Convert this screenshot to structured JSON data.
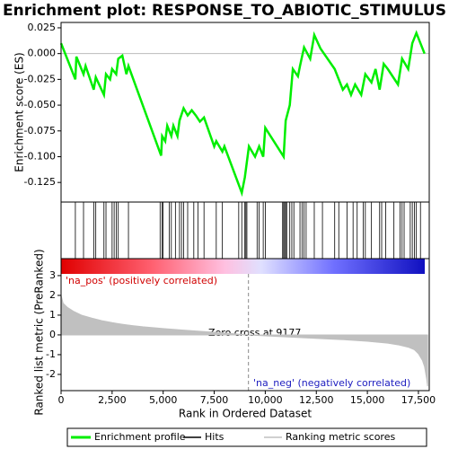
{
  "chart_data": [
    {
      "type": "line",
      "title": "Enrichment plot: RESPONSE_TO_ABIOTIC_STIMULUS",
      "ylabel": "Enrichment score (ES)",
      "xlim": [
        0,
        18030
      ],
      "ylim": [
        -0.144,
        0.0302
      ],
      "yticks": [
        0.025,
        {
          "value": 0,
          "label": "0.000"
        },
        -0.025,
        {
          "value": -0.05,
          "label": "-0.050"
        },
        -0.075,
        {
          "value": -0.1,
          "label": "-0.100"
        },
        -0.125
      ],
      "x": [
        0,
        700,
        750,
        1100,
        1200,
        1600,
        1700,
        2100,
        2200,
        2400,
        2500,
        2700,
        2800,
        3000,
        3200,
        3300,
        4900,
        4950,
        5100,
        5200,
        5400,
        5500,
        5700,
        5800,
        6000,
        6200,
        6400,
        6600,
        6800,
        7000,
        7500,
        7600,
        7900,
        8000,
        8850,
        9000,
        9100,
        9200,
        9500,
        9700,
        9900,
        10000,
        10900,
        11000,
        11200,
        11350,
        11600,
        11700,
        11900,
        12200,
        12400,
        12700,
        13400,
        13800,
        14000,
        14200,
        14400,
        14700,
        14900,
        15200,
        15400,
        15600,
        15800,
        16000,
        16500,
        16700,
        17000,
        17200,
        17400,
        17700,
        17800
      ],
      "series": [
        {
          "name": "Enrichment profile",
          "color": "#00ee00",
          "values": [
            0.01,
            -0.025,
            -0.003,
            -0.02,
            -0.012,
            -0.035,
            -0.023,
            -0.04,
            -0.02,
            -0.025,
            -0.015,
            -0.02,
            -0.005,
            -0.002,
            -0.02,
            -0.012,
            -0.099,
            -0.08,
            -0.085,
            -0.07,
            -0.08,
            -0.07,
            -0.08,
            -0.065,
            -0.053,
            -0.06,
            -0.055,
            -0.06,
            -0.066,
            -0.062,
            -0.09,
            -0.085,
            -0.095,
            -0.09,
            -0.135,
            -0.12,
            -0.105,
            -0.09,
            -0.1,
            -0.09,
            -0.1,
            -0.072,
            -0.1,
            -0.065,
            -0.05,
            -0.015,
            -0.022,
            -0.012,
            0.006,
            -0.005,
            0.018,
            0.005,
            -0.015,
            -0.035,
            -0.03,
            -0.04,
            -0.03,
            -0.04,
            -0.02,
            -0.028,
            -0.015,
            -0.035,
            -0.01,
            -0.015,
            -0.03,
            -0.005,
            -0.015,
            0.01,
            0.02,
            0.005,
            0
          ]
        }
      ]
    },
    {
      "type": "rug",
      "xlim": [
        0,
        18030
      ],
      "series": [
        {
          "name": "Hits",
          "color": "#000000",
          "x": [
            700,
            1100,
            1600,
            1700,
            2100,
            2200,
            2500,
            2600,
            2700,
            2800,
            3300,
            4850,
            4950,
            5000,
            5300,
            5400,
            5600,
            5800,
            5900,
            6000,
            6200,
            6500,
            6700,
            7000,
            7600,
            7900,
            8700,
            8850,
            9000,
            9050,
            9100,
            9600,
            9700,
            9900,
            10000,
            10850,
            10900,
            10950,
            11000,
            11050,
            11200,
            11300,
            11400,
            11700,
            11800,
            11900,
            12000,
            12400,
            12800,
            13400,
            13600,
            14000,
            14300,
            14500,
            14800,
            14900,
            15200,
            15600,
            15700,
            15900,
            16300,
            16600,
            16700,
            16800,
            17100,
            17200,
            17300,
            17400,
            17600
          ]
        }
      ]
    },
    {
      "type": "area",
      "ylabel": "Ranked list metric (PreRanked)",
      "xlabel": "Rank in Ordered Dataset",
      "xlim": [
        0,
        18030
      ],
      "ylim": [
        -2.82,
        3.86
      ],
      "yticks": [
        3,
        2,
        1,
        0,
        -1,
        -2
      ],
      "xticks": [
        0,
        {
          "value": 2500,
          "label": "2,500"
        },
        {
          "value": 5000,
          "label": "5,000"
        },
        {
          "value": 7500,
          "label": "7,500"
        },
        {
          "value": 10000,
          "label": "10,000"
        },
        {
          "value": 12500,
          "label": "12,500"
        },
        {
          "value": 15000,
          "label": "15,000"
        },
        {
          "value": 17500,
          "label": "17,500"
        }
      ],
      "x": [
        0,
        100,
        300,
        600,
        1000,
        1500,
        2000,
        2500,
        3000,
        3500,
        4000,
        5000,
        6000,
        7000,
        8000,
        9177,
        10000,
        11000,
        12000,
        13000,
        14000,
        15000,
        16000,
        16500,
        17000,
        17300,
        17500,
        17700,
        17800,
        17900,
        17950
      ],
      "series": [
        {
          "name": "Ranking metric scores",
          "color": "#c0c0c0",
          "values": [
            2.0,
            1.6,
            1.4,
            1.2,
            1.0,
            0.85,
            0.72,
            0.62,
            0.54,
            0.47,
            0.41,
            0.32,
            0.24,
            0.17,
            0.1,
            0,
            -0.05,
            -0.1,
            -0.15,
            -0.2,
            -0.25,
            -0.32,
            -0.42,
            -0.5,
            -0.62,
            -0.75,
            -0.95,
            -1.3,
            -1.6,
            -2.2,
            -2.6
          ]
        }
      ],
      "zero_cross": 9177,
      "annotations": [
        "'na_pos' (positively correlated)",
        "Zero cross at 9177",
        "'na_neg' (negatively correlated)"
      ]
    }
  ]
}
